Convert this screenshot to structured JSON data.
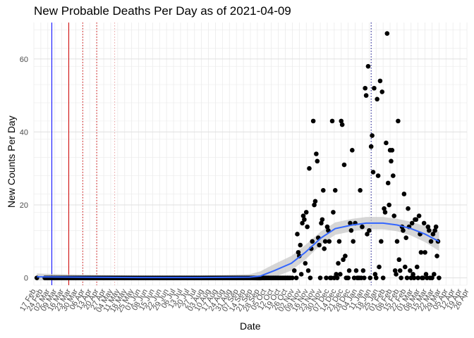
{
  "chart_data": {
    "type": "scatter",
    "title": "New Probable Deaths Per Day as of 2021-04-09",
    "xlabel": "Date",
    "ylabel": "New Counts Per Day",
    "grid": true,
    "legend": "none",
    "x_start": "2020-02-17",
    "x_end": "2021-04-26",
    "ylim": [
      -2,
      70
    ],
    "y_ticks": [
      0,
      20,
      40,
      60
    ],
    "x_tick_labels": [
      "17 Feb",
      "24 Feb",
      "02 Mar",
      "09 Mar",
      "16 Mar",
      "23 Mar",
      "30 Mar",
      "06 Apr",
      "13 Apr",
      "20 Apr",
      "27 Apr",
      "04 May",
      "11 May",
      "18 May",
      "25 May",
      "01 Jun",
      "08 Jun",
      "15 Jun",
      "22 Jun",
      "29 Jun",
      "06 Jul",
      "13 Jul",
      "20 Jul",
      "27 Jul",
      "03 Aug",
      "10 Aug",
      "17 Aug",
      "24 Aug",
      "31 Aug",
      "07 Sep",
      "14 Sep",
      "21 Sep",
      "28 Sep",
      "05 Oct",
      "12 Oct",
      "19 Oct",
      "26 Oct",
      "02 Nov",
      "09 Nov",
      "16 Nov",
      "23 Nov",
      "30 Nov",
      "07 Dec",
      "14 Dec",
      "21 Dec",
      "28 Dec",
      "04 Jan",
      "11 Jan",
      "18 Jan",
      "25 Jan",
      "01 Feb",
      "08 Feb",
      "15 Feb",
      "22 Feb",
      "01 Mar",
      "08 Mar",
      "15 Mar",
      "22 Mar",
      "29 Mar",
      "05 Apr",
      "12 Apr",
      "19 Apr",
      "26 Apr"
    ],
    "vlines": [
      {
        "date": "2020-03-06",
        "color": "#0000ff",
        "style": "solid"
      },
      {
        "date": "2020-03-23",
        "color": "#cc0000",
        "style": "solid"
      },
      {
        "date": "2020-04-06",
        "color": "#cc0000",
        "style": "dotted"
      },
      {
        "date": "2020-04-20",
        "color": "#cc0000",
        "style": "dotted"
      },
      {
        "date": "2020-05-08",
        "color": "#e8a0a0",
        "style": "dotted"
      },
      {
        "date": "2021-01-20",
        "color": "#000080",
        "style": "dotted"
      }
    ],
    "zero_points": {
      "from": "2020-02-28",
      "to": "2020-10-31",
      "value": 0
    },
    "points": [
      {
        "x": "2020-02-20",
        "y": 0
      },
      {
        "x": "2020-10-28",
        "y": 0
      },
      {
        "x": "2020-11-02",
        "y": 0
      },
      {
        "x": "2020-11-04",
        "y": 2
      },
      {
        "x": "2020-11-06",
        "y": 0
      },
      {
        "x": "2020-11-07",
        "y": 12
      },
      {
        "x": "2020-11-08",
        "y": 7
      },
      {
        "x": "2020-11-09",
        "y": 6
      },
      {
        "x": "2020-11-10",
        "y": 9
      },
      {
        "x": "2020-11-11",
        "y": 1
      },
      {
        "x": "2020-11-12",
        "y": 15
      },
      {
        "x": "2020-11-13",
        "y": 17
      },
      {
        "x": "2020-11-14",
        "y": 16
      },
      {
        "x": "2020-11-15",
        "y": 4
      },
      {
        "x": "2020-11-16",
        "y": 18
      },
      {
        "x": "2020-11-17",
        "y": 14
      },
      {
        "x": "2020-11-18",
        "y": 2
      },
      {
        "x": "2020-11-19",
        "y": 30
      },
      {
        "x": "2020-11-20",
        "y": 0
      },
      {
        "x": "2020-11-21",
        "y": 8
      },
      {
        "x": "2020-11-22",
        "y": 10
      },
      {
        "x": "2020-11-23",
        "y": 43
      },
      {
        "x": "2020-11-24",
        "y": 20
      },
      {
        "x": "2020-11-25",
        "y": 21
      },
      {
        "x": "2020-11-26",
        "y": 34
      },
      {
        "x": "2020-11-27",
        "y": 32
      },
      {
        "x": "2020-11-28",
        "y": 11
      },
      {
        "x": "2020-11-29",
        "y": 9
      },
      {
        "x": "2020-11-30",
        "y": 0
      },
      {
        "x": "2020-12-01",
        "y": 15
      },
      {
        "x": "2020-12-02",
        "y": 16
      },
      {
        "x": "2020-12-03",
        "y": 24
      },
      {
        "x": "2020-12-04",
        "y": 8
      },
      {
        "x": "2020-12-05",
        "y": 10
      },
      {
        "x": "2020-12-06",
        "y": 0
      },
      {
        "x": "2020-12-07",
        "y": 14
      },
      {
        "x": "2020-12-08",
        "y": 13
      },
      {
        "x": "2020-12-09",
        "y": 10
      },
      {
        "x": "2020-12-10",
        "y": 0
      },
      {
        "x": "2020-12-11",
        "y": 0
      },
      {
        "x": "2020-12-12",
        "y": 43
      },
      {
        "x": "2020-12-13",
        "y": 18
      },
      {
        "x": "2020-12-14",
        "y": 0
      },
      {
        "x": "2020-12-15",
        "y": 24
      },
      {
        "x": "2020-12-16",
        "y": 1
      },
      {
        "x": "2020-12-17",
        "y": 0
      },
      {
        "x": "2020-12-18",
        "y": 4
      },
      {
        "x": "2020-12-19",
        "y": 10
      },
      {
        "x": "2020-12-20",
        "y": 1
      },
      {
        "x": "2020-12-21",
        "y": 43
      },
      {
        "x": "2020-12-22",
        "y": 42
      },
      {
        "x": "2020-12-23",
        "y": 5
      },
      {
        "x": "2020-12-24",
        "y": 31
      },
      {
        "x": "2020-12-25",
        "y": 6
      },
      {
        "x": "2020-12-26",
        "y": 0
      },
      {
        "x": "2020-12-27",
        "y": 0
      },
      {
        "x": "2020-12-28",
        "y": 0
      },
      {
        "x": "2020-12-29",
        "y": 2
      },
      {
        "x": "2020-12-30",
        "y": 15
      },
      {
        "x": "2020-12-31",
        "y": 13
      },
      {
        "x": "2021-01-01",
        "y": 35
      },
      {
        "x": "2021-01-02",
        "y": 10
      },
      {
        "x": "2021-01-03",
        "y": 0
      },
      {
        "x": "2021-01-04",
        "y": 15
      },
      {
        "x": "2021-01-05",
        "y": 2
      },
      {
        "x": "2021-01-06",
        "y": 0
      },
      {
        "x": "2021-01-07",
        "y": 0
      },
      {
        "x": "2021-01-08",
        "y": 0
      },
      {
        "x": "2021-01-09",
        "y": 24
      },
      {
        "x": "2021-01-10",
        "y": 0
      },
      {
        "x": "2021-01-11",
        "y": 14
      },
      {
        "x": "2021-01-12",
        "y": 2
      },
      {
        "x": "2021-01-13",
        "y": 0
      },
      {
        "x": "2021-01-14",
        "y": 52
      },
      {
        "x": "2021-01-15",
        "y": 50
      },
      {
        "x": "2021-01-16",
        "y": 12
      },
      {
        "x": "2021-01-17",
        "y": 58
      },
      {
        "x": "2021-01-18",
        "y": 13
      },
      {
        "x": "2021-01-19",
        "y": 0
      },
      {
        "x": "2021-01-20",
        "y": 36
      },
      {
        "x": "2021-01-21",
        "y": 39
      },
      {
        "x": "2021-01-22",
        "y": 29
      },
      {
        "x": "2021-01-23",
        "y": 52
      },
      {
        "x": "2021-01-24",
        "y": 1
      },
      {
        "x": "2021-01-25",
        "y": 0
      },
      {
        "x": "2021-01-26",
        "y": 49
      },
      {
        "x": "2021-01-27",
        "y": 28
      },
      {
        "x": "2021-01-28",
        "y": 3
      },
      {
        "x": "2021-01-29",
        "y": 54
      },
      {
        "x": "2021-01-30",
        "y": 10
      },
      {
        "x": "2021-01-31",
        "y": 51
      },
      {
        "x": "2021-02-01",
        "y": 0
      },
      {
        "x": "2021-02-02",
        "y": 19
      },
      {
        "x": "2021-02-03",
        "y": 18
      },
      {
        "x": "2021-02-04",
        "y": 37
      },
      {
        "x": "2021-02-05",
        "y": 67
      },
      {
        "x": "2021-02-06",
        "y": 26
      },
      {
        "x": "2021-02-07",
        "y": 20
      },
      {
        "x": "2021-02-08",
        "y": 35
      },
      {
        "x": "2021-02-09",
        "y": 32
      },
      {
        "x": "2021-02-10",
        "y": 35
      },
      {
        "x": "2021-02-11",
        "y": 28
      },
      {
        "x": "2021-02-12",
        "y": 17
      },
      {
        "x": "2021-02-13",
        "y": 2
      },
      {
        "x": "2021-02-14",
        "y": 1
      },
      {
        "x": "2021-02-15",
        "y": 10
      },
      {
        "x": "2021-02-16",
        "y": 43
      },
      {
        "x": "2021-02-17",
        "y": 5
      },
      {
        "x": "2021-02-18",
        "y": 2
      },
      {
        "x": "2021-02-19",
        "y": 0
      },
      {
        "x": "2021-02-20",
        "y": 14
      },
      {
        "x": "2021-02-21",
        "y": 13
      },
      {
        "x": "2021-02-22",
        "y": 23
      },
      {
        "x": "2021-02-23",
        "y": 3
      },
      {
        "x": "2021-02-24",
        "y": 11
      },
      {
        "x": "2021-02-25",
        "y": 0
      },
      {
        "x": "2021-02-26",
        "y": 19
      },
      {
        "x": "2021-02-27",
        "y": 14
      },
      {
        "x": "2021-02-28",
        "y": 2
      },
      {
        "x": "2021-03-01",
        "y": 0
      },
      {
        "x": "2021-03-02",
        "y": 15
      },
      {
        "x": "2021-03-03",
        "y": 1
      },
      {
        "x": "2021-03-04",
        "y": 0
      },
      {
        "x": "2021-03-05",
        "y": 16
      },
      {
        "x": "2021-03-06",
        "y": 16
      },
      {
        "x": "2021-03-07",
        "y": 3
      },
      {
        "x": "2021-03-08",
        "y": 0
      },
      {
        "x": "2021-03-09",
        "y": 17
      },
      {
        "x": "2021-03-10",
        "y": 12
      },
      {
        "x": "2021-03-11",
        "y": 7
      },
      {
        "x": "2021-03-12",
        "y": 0
      },
      {
        "x": "2021-03-13",
        "y": 0
      },
      {
        "x": "2021-03-14",
        "y": 15
      },
      {
        "x": "2021-03-15",
        "y": 7
      },
      {
        "x": "2021-03-16",
        "y": 1
      },
      {
        "x": "2021-03-17",
        "y": 0
      },
      {
        "x": "2021-03-18",
        "y": 14
      },
      {
        "x": "2021-03-19",
        "y": 13
      },
      {
        "x": "2021-03-20",
        "y": 0
      },
      {
        "x": "2021-03-21",
        "y": 10
      },
      {
        "x": "2021-03-22",
        "y": 0
      },
      {
        "x": "2021-03-23",
        "y": 12
      },
      {
        "x": "2021-03-24",
        "y": 1
      },
      {
        "x": "2021-03-25",
        "y": 13
      },
      {
        "x": "2021-03-26",
        "y": 14
      },
      {
        "x": "2021-03-27",
        "y": 6
      },
      {
        "x": "2021-03-28",
        "y": 10
      },
      {
        "x": "2021-03-29",
        "y": 0
      }
    ],
    "smooth": [
      {
        "x": "2020-02-20",
        "y": 0.3
      },
      {
        "x": "2020-04-01",
        "y": 0.2
      },
      {
        "x": "2020-06-01",
        "y": 0.1
      },
      {
        "x": "2020-08-01",
        "y": 0.1
      },
      {
        "x": "2020-09-20",
        "y": 0.2
      },
      {
        "x": "2020-10-01",
        "y": 0.5
      },
      {
        "x": "2020-10-15",
        "y": 2
      },
      {
        "x": "2020-11-01",
        "y": 4
      },
      {
        "x": "2020-11-15",
        "y": 7
      },
      {
        "x": "2020-12-01",
        "y": 11
      },
      {
        "x": "2020-12-15",
        "y": 13.5
      },
      {
        "x": "2021-01-01",
        "y": 14.5
      },
      {
        "x": "2021-01-15",
        "y": 15
      },
      {
        "x": "2021-02-01",
        "y": 15
      },
      {
        "x": "2021-02-15",
        "y": 14.5
      },
      {
        "x": "2021-03-01",
        "y": 13.5
      },
      {
        "x": "2021-03-15",
        "y": 12
      },
      {
        "x": "2021-03-29",
        "y": 10
      }
    ],
    "smooth_band": [
      {
        "x": "2020-02-20",
        "lo": -0.7,
        "hi": 1.2
      },
      {
        "x": "2020-04-01",
        "lo": -0.5,
        "hi": 0.9
      },
      {
        "x": "2020-06-01",
        "lo": -0.4,
        "hi": 0.6
      },
      {
        "x": "2020-08-01",
        "lo": -0.4,
        "hi": 0.6
      },
      {
        "x": "2020-09-20",
        "lo": -0.6,
        "hi": 1.0
      },
      {
        "x": "2020-10-01",
        "lo": -0.8,
        "hi": 1.8
      },
      {
        "x": "2020-10-15",
        "lo": 0.2,
        "hi": 3.8
      },
      {
        "x": "2020-11-01",
        "lo": 2.0,
        "hi": 6.0
      },
      {
        "x": "2020-11-15",
        "lo": 5.0,
        "hi": 9.0
      },
      {
        "x": "2020-12-01",
        "lo": 9.2,
        "hi": 12.8
      },
      {
        "x": "2020-12-15",
        "lo": 11.8,
        "hi": 15.2
      },
      {
        "x": "2021-01-01",
        "lo": 12.8,
        "hi": 16.2
      },
      {
        "x": "2021-01-15",
        "lo": 13.3,
        "hi": 16.7
      },
      {
        "x": "2021-02-01",
        "lo": 13.3,
        "hi": 16.7
      },
      {
        "x": "2021-02-15",
        "lo": 12.8,
        "hi": 16.2
      },
      {
        "x": "2021-03-01",
        "lo": 11.6,
        "hi": 15.4
      },
      {
        "x": "2021-03-15",
        "lo": 9.8,
        "hi": 14.2
      },
      {
        "x": "2021-03-29",
        "lo": 7.4,
        "hi": 12.6
      }
    ],
    "colors": {
      "points": "#000000",
      "smooth": "#3366ff",
      "band": "#c8c8c8",
      "grid": "#ebebeb"
    }
  }
}
